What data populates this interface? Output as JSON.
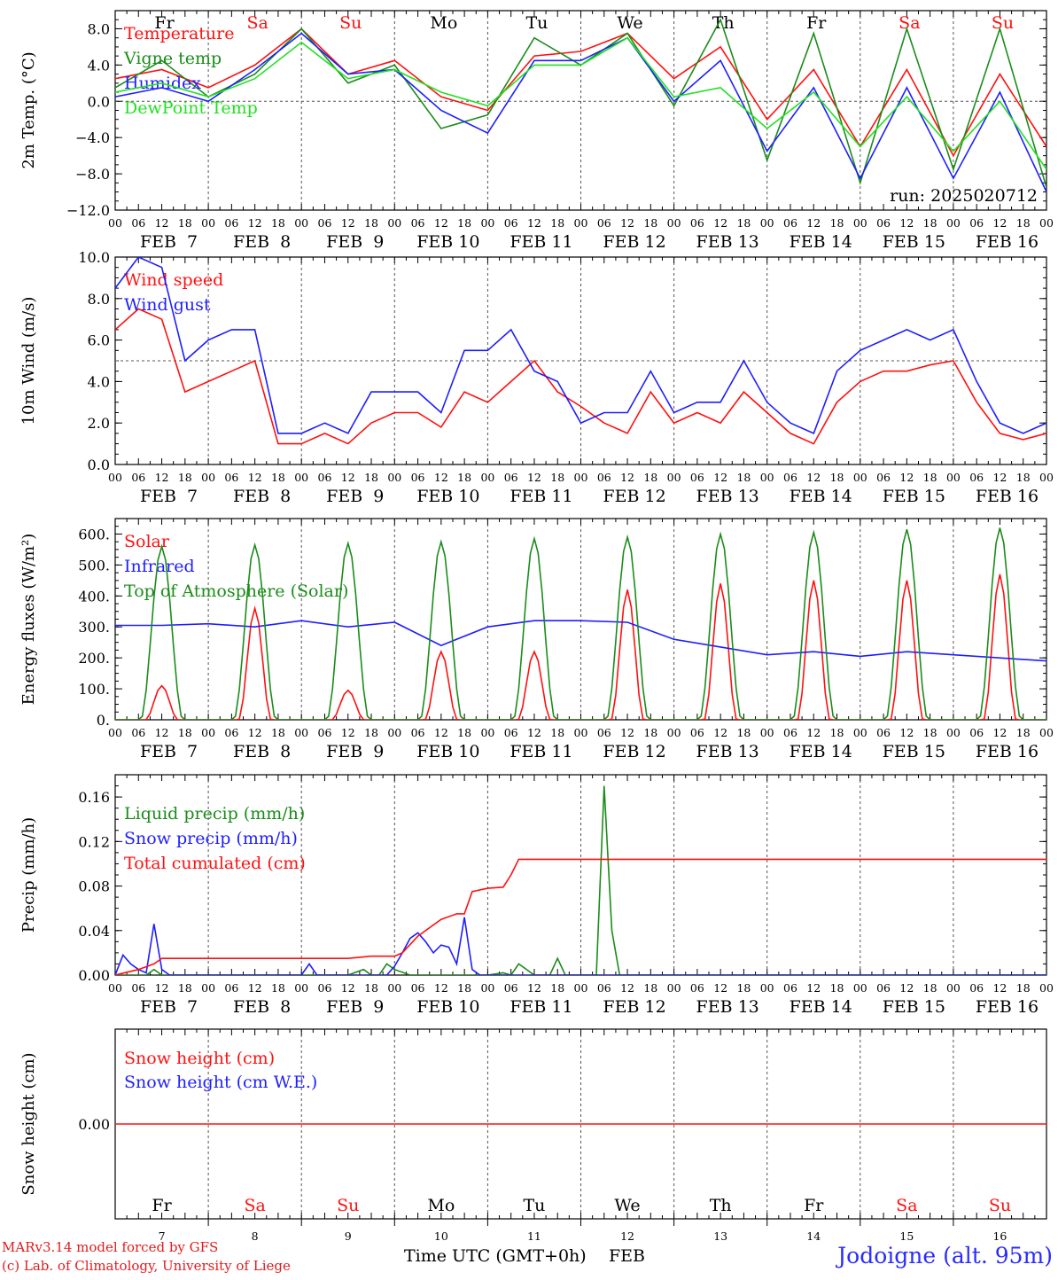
{
  "colors": {
    "red": "#ff1010",
    "green": "#1a8c1a",
    "blue": "#1e1eff",
    "lightgreen": "#22e022",
    "black": "#000000",
    "grid": "#555555"
  },
  "x_axis": {
    "hour_labels": [
      "00",
      "06",
      "12",
      "18"
    ],
    "final_hour_label": "00",
    "date_labels": [
      "FEB  7",
      "FEB  8",
      "FEB  9",
      "FEB 10",
      "FEB 11",
      "FEB 12",
      "FEB 13",
      "FEB 14",
      "FEB 15",
      "FEB 16"
    ],
    "day_names": [
      "Fr",
      "Sa",
      "Su",
      "Mo",
      "Tu",
      "We",
      "Th",
      "Fr",
      "Sa",
      "Su"
    ],
    "weekend_day_indices": [
      1,
      2,
      8,
      9
    ],
    "day_numbers": [
      "7",
      "8",
      "9",
      "10",
      "11",
      "12",
      "13",
      "14",
      "15",
      "16"
    ],
    "n_days": 10
  },
  "footer": {
    "model_line": "MARv3.14 model forced by GFS",
    "copyright_line": "(c) Lab. of Climatology, University of Liege",
    "time_axis_label": "Time UTC (GMT+0h)",
    "month_label": "FEB",
    "location": "Jodoigne (alt. 95m)"
  },
  "chart_data": [
    {
      "type": "line",
      "ylabel": "2m Temp. (°C)",
      "ylim": [
        -12,
        10
      ],
      "yticks": [
        -12,
        -8,
        -4,
        0,
        4,
        8
      ],
      "ytick_labels": [
        "−12.0",
        "−8.0",
        "−4.0",
        "0.0",
        "4.0",
        "8.0"
      ],
      "reference_line": 0,
      "show_day_names": true,
      "annotation": "run: 2025020712",
      "series": [
        {
          "name": "Temperature",
          "color": "#ff1010",
          "x": [
            0,
            12,
            24,
            36,
            48,
            60,
            72,
            84,
            96,
            108,
            120,
            132,
            144,
            156,
            168,
            180,
            192,
            204,
            216,
            228,
            240
          ],
          "y": [
            2.5,
            3.5,
            1.5,
            4.0,
            8.0,
            3.0,
            4.5,
            0.5,
            -1.0,
            5.0,
            5.5,
            7.5,
            2.5,
            6.0,
            -2.0,
            3.5,
            -5.0,
            3.5,
            -6.0,
            3.0,
            -5.0
          ]
        },
        {
          "name": "Vigne temp",
          "color": "#1a8c1a",
          "x": [
            0,
            12,
            24,
            36,
            48,
            60,
            72,
            84,
            96,
            108,
            120,
            132,
            144,
            156,
            168,
            180,
            192,
            204,
            216,
            228,
            240
          ],
          "y": [
            1.5,
            4.5,
            0.5,
            3.0,
            8.0,
            2.0,
            4.0,
            -3.0,
            -1.5,
            7.0,
            4.0,
            7.5,
            -0.5,
            9.0,
            -6.5,
            7.5,
            -9.0,
            8.0,
            -7.5,
            8.0,
            -9.5
          ]
        },
        {
          "name": "Humidex",
          "color": "#1e1eff",
          "x": [
            0,
            12,
            24,
            36,
            48,
            60,
            72,
            84,
            96,
            108,
            120,
            132,
            144,
            156,
            168,
            180,
            192,
            204,
            216,
            228,
            240
          ],
          "y": [
            0.5,
            1.5,
            0.0,
            3.5,
            7.5,
            3.0,
            3.5,
            -1.0,
            -3.5,
            4.5,
            4.5,
            7.0,
            0.0,
            4.5,
            -5.5,
            1.5,
            -8.5,
            1.5,
            -8.5,
            1.0,
            -10.0
          ]
        },
        {
          "name": "DewPoint Temp",
          "color": "#22e022",
          "x": [
            0,
            12,
            24,
            36,
            48,
            60,
            72,
            84,
            96,
            108,
            120,
            132,
            144,
            156,
            168,
            180,
            192,
            204,
            216,
            228,
            240
          ],
          "y": [
            1.0,
            2.0,
            0.5,
            2.5,
            6.5,
            2.5,
            3.5,
            1.0,
            -0.5,
            4.0,
            4.0,
            7.0,
            0.5,
            1.5,
            -3.0,
            1.0,
            -5.0,
            0.5,
            -5.5,
            0.0,
            -7.5
          ]
        }
      ]
    },
    {
      "type": "line",
      "ylabel": "10m Wind (m/s)",
      "ylim": [
        0,
        10
      ],
      "yticks": [
        0,
        2,
        4,
        6,
        8,
        10
      ],
      "ytick_labels": [
        "0.0",
        "2.0",
        "4.0",
        "6.0",
        "8.0",
        "10.0"
      ],
      "reference_line": 5,
      "series": [
        {
          "name": "Wind speed",
          "color": "#ff1010",
          "x": [
            0,
            6,
            12,
            18,
            24,
            30,
            36,
            42,
            48,
            54,
            60,
            66,
            72,
            78,
            84,
            90,
            96,
            102,
            108,
            114,
            120,
            126,
            132,
            138,
            144,
            150,
            156,
            162,
            168,
            174,
            180,
            186,
            192,
            198,
            204,
            210,
            216,
            222,
            228,
            234,
            240
          ],
          "y": [
            6.5,
            7.5,
            7.0,
            3.5,
            4.0,
            4.5,
            5.0,
            1.0,
            1.0,
            1.5,
            1.0,
            2.0,
            2.5,
            2.5,
            1.8,
            3.5,
            3.0,
            4.0,
            5.0,
            3.5,
            2.8,
            2.0,
            1.5,
            3.5,
            2.0,
            2.5,
            2.0,
            3.5,
            2.5,
            1.5,
            1.0,
            3.0,
            4.0,
            4.5,
            4.5,
            4.8,
            5.0,
            3.0,
            1.5,
            1.2,
            1.5
          ]
        },
        {
          "name": "Wind gust",
          "color": "#1e1eff",
          "x": [
            0,
            6,
            12,
            18,
            24,
            30,
            36,
            42,
            48,
            54,
            60,
            66,
            72,
            78,
            84,
            90,
            96,
            102,
            108,
            114,
            120,
            126,
            132,
            138,
            144,
            150,
            156,
            162,
            168,
            174,
            180,
            186,
            192,
            198,
            204,
            210,
            216,
            222,
            228,
            234,
            240
          ],
          "y": [
            8.5,
            10.0,
            9.5,
            5.0,
            6.0,
            6.5,
            6.5,
            1.5,
            1.5,
            2.0,
            1.5,
            3.5,
            3.5,
            3.5,
            2.5,
            5.5,
            5.5,
            6.5,
            4.5,
            4.0,
            2.0,
            2.5,
            2.5,
            4.5,
            2.5,
            3.0,
            3.0,
            5.0,
            3.0,
            2.0,
            1.5,
            4.5,
            5.5,
            6.0,
            6.5,
            6.0,
            6.5,
            4.0,
            2.0,
            1.5,
            2.0
          ]
        }
      ]
    },
    {
      "type": "line",
      "ylabel": "Energy fluxes (W/m²)",
      "ylim": [
        0,
        650
      ],
      "yticks": [
        0,
        100,
        200,
        300,
        400,
        500,
        600
      ],
      "ytick_labels": [
        "0.",
        "100.",
        "200.",
        "300.",
        "400.",
        "500.",
        "600."
      ],
      "peak_hour": 12,
      "series": [
        {
          "name": "Solar",
          "color": "#ff1010",
          "daily_peaks": [
            110,
            360,
            95,
            220,
            220,
            420,
            440,
            450,
            450,
            470
          ]
        },
        {
          "name": "Infrared",
          "color": "#1e1eff",
          "x": [
            0,
            12,
            24,
            36,
            48,
            60,
            72,
            84,
            96,
            108,
            120,
            132,
            144,
            156,
            168,
            180,
            192,
            204,
            216,
            228,
            240
          ],
          "y": [
            305,
            305,
            310,
            300,
            320,
            300,
            315,
            240,
            300,
            320,
            320,
            315,
            260,
            235,
            210,
            220,
            205,
            220,
            210,
            200,
            190
          ]
        },
        {
          "name": "Top of Atmosphere (Solar)",
          "color": "#1a8c1a",
          "daily_peaks": [
            560,
            565,
            570,
            575,
            585,
            590,
            600,
            605,
            615,
            620
          ]
        }
      ]
    },
    {
      "type": "line",
      "ylabel": "Precip (mm/h)",
      "ylim": [
        0,
        0.18
      ],
      "yticks": [
        0,
        0.04,
        0.08,
        0.12,
        0.16
      ],
      "ytick_labels": [
        "0.00",
        "0.04",
        "0.08",
        "0.12",
        "0.16"
      ],
      "series": [
        {
          "name": "Liquid precip (mm/h)",
          "color": "#1a8c1a",
          "x": [
            0,
            8,
            10,
            12,
            60,
            64,
            66,
            68,
            70,
            72,
            76,
            80,
            96,
            100,
            102,
            104,
            108,
            112,
            114,
            116,
            118,
            120,
            124,
            126,
            128,
            130,
            132,
            240
          ],
          "y": [
            0,
            0,
            0.005,
            0,
            0,
            0.005,
            0,
            0,
            0.01,
            0.005,
            0,
            0,
            0,
            0.002,
            0,
            0.01,
            0,
            0,
            0.015,
            0,
            0,
            0,
            0,
            0.17,
            0.04,
            0,
            0,
            0
          ]
        },
        {
          "name": "Snow precip (mm/h)",
          "color": "#1e1eff",
          "x": [
            0,
            2,
            4,
            6,
            8,
            10,
            12,
            14,
            48,
            50,
            52,
            54,
            56,
            70,
            72,
            74,
            76,
            78,
            80,
            82,
            84,
            86,
            88,
            90,
            92,
            94,
            96,
            98,
            100,
            240
          ],
          "y": [
            0,
            0.018,
            0.01,
            0.005,
            0.002,
            0.046,
            0.005,
            0,
            0,
            0.01,
            0,
            0,
            0,
            0,
            0.008,
            0.02,
            0.033,
            0.038,
            0.03,
            0.02,
            0.027,
            0.025,
            0.01,
            0.052,
            0.005,
            0,
            0,
            0,
            0,
            0
          ]
        },
        {
          "name": "Total cumulated (cm)",
          "color": "#ff1010",
          "x": [
            0,
            6,
            10,
            12,
            60,
            66,
            72,
            74,
            78,
            84,
            88,
            90,
            92,
            96,
            100,
            102,
            104,
            240
          ],
          "y": [
            0,
            0.005,
            0.01,
            0.015,
            0.015,
            0.017,
            0.017,
            0.02,
            0.035,
            0.05,
            0.055,
            0.055,
            0.075,
            0.078,
            0.079,
            0.09,
            0.104,
            0.104
          ]
        }
      ]
    },
    {
      "type": "line",
      "ylabel": "Snow height (cm)",
      "ylim": [
        -1,
        1
      ],
      "yticks": [
        0
      ],
      "ytick_labels": [
        "0.00"
      ],
      "show_bottom_day_names": true,
      "series": [
        {
          "name": "Snow height (cm)",
          "color": "#ff1010",
          "x": [
            0,
            240
          ],
          "y": [
            0,
            0
          ]
        },
        {
          "name": "Snow height (cm W.E.)",
          "color": "#1e1eff",
          "x": [],
          "y": []
        }
      ]
    }
  ]
}
